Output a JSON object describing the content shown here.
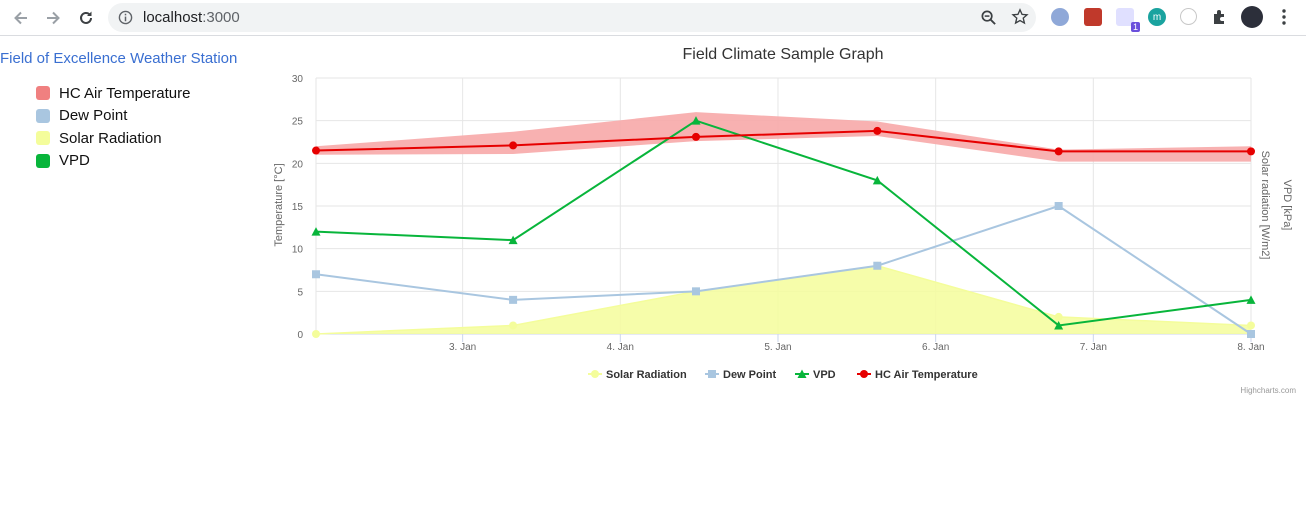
{
  "browser": {
    "url_host": "localhost",
    "url_port": ":3000",
    "extension_badge": "1",
    "extension_m_letter": "m"
  },
  "page": {
    "site_title": "Field of Excellence Weather Station",
    "side_legend": [
      {
        "label": "HC Air Temperature",
        "color": "#f08080"
      },
      {
        "label": "Dew Point",
        "color": "#a9c6e0"
      },
      {
        "label": "Solar Radiation",
        "color": "#f4fd9b"
      },
      {
        "label": "VPD",
        "color": "#08b53b"
      }
    ]
  },
  "chart_data": {
    "type": "line",
    "title": "Field Climate Sample Graph",
    "y_axis_left_title": "Temperature [°C]",
    "y_axis_right_titles": [
      "VPD [kPa]",
      "Solar radiation [W/m2]"
    ],
    "ylim": [
      0,
      30
    ],
    "y_ticks": [
      "0",
      "5",
      "10",
      "15",
      "20",
      "25",
      "30"
    ],
    "x_ticks": [
      "3. Jan",
      "4. Jan",
      "5. Jan",
      "6. Jan",
      "7. Jan",
      "8. Jan"
    ],
    "x_tick_days": [
      3,
      4,
      5,
      6,
      7,
      8
    ],
    "xlim_days": [
      2.07,
      8.0
    ],
    "grid": true,
    "legend_position": "bottom-center",
    "credits": "Highcharts.com",
    "series": [
      {
        "name": "Solar Radiation",
        "type": "area",
        "color": "#f4fd9b",
        "marker": "circle",
        "x": [
          2.07,
          3.32,
          4.48,
          5.63,
          6.78,
          8.0
        ],
        "values": [
          0,
          1,
          5,
          8,
          2,
          1
        ]
      },
      {
        "name": "Dew Point",
        "type": "line",
        "color": "#a9c6e0",
        "marker": "square",
        "x": [
          2.07,
          3.32,
          4.48,
          5.63,
          6.78,
          8.0
        ],
        "values": [
          7,
          4,
          5,
          8,
          15,
          0
        ]
      },
      {
        "name": "VPD",
        "type": "line",
        "color": "#08b53b",
        "marker": "triangle",
        "x": [
          2.07,
          3.32,
          4.48,
          5.63,
          6.78,
          8.0
        ],
        "values": [
          12,
          11,
          25,
          18,
          1,
          4
        ]
      },
      {
        "name": "HC Air Temperature",
        "type": "line",
        "color": "#e60000",
        "marker": "circle",
        "x": [
          2.07,
          3.32,
          4.48,
          5.63,
          6.78,
          8.0
        ],
        "values": [
          21.5,
          22.1,
          23.1,
          23.8,
          21.4,
          21.4
        ]
      }
    ],
    "temperature_range": {
      "color": "#f7a8a8",
      "x": [
        2.07,
        3.32,
        4.48,
        5.63,
        6.78,
        8.0
      ],
      "low": [
        21.0,
        21.1,
        22.6,
        23.2,
        20.2,
        20.2
      ],
      "high": [
        22.0,
        23.7,
        26.0,
        24.9,
        21.6,
        22.0
      ]
    }
  }
}
